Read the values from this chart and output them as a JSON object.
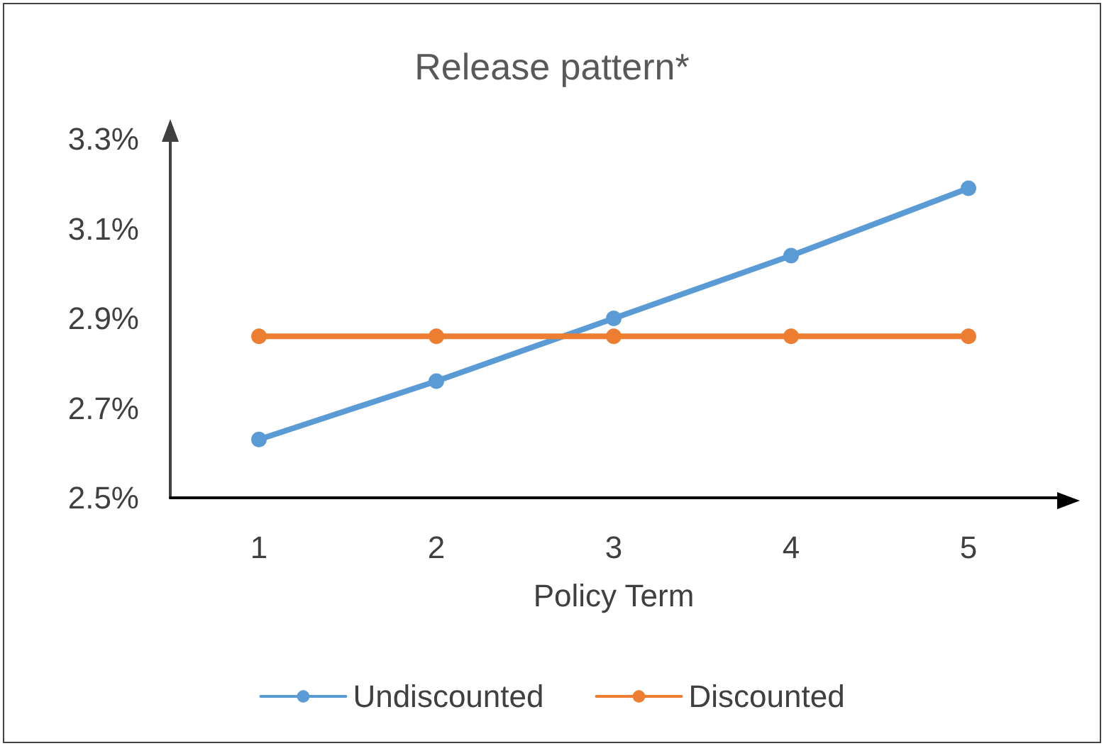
{
  "chart_data": {
    "type": "line",
    "title": "Release pattern*",
    "xlabel": "Policy Term",
    "categories": [
      "1",
      "2",
      "3",
      "4",
      "5"
    ],
    "series": [
      {
        "name": "Undiscounted",
        "color": "#5b9bd5",
        "values": [
          2.63,
          2.76,
          2.9,
          3.04,
          3.19
        ]
      },
      {
        "name": "Discounted",
        "color": "#ed7d31",
        "values": [
          2.86,
          2.86,
          2.86,
          2.86,
          2.86
        ]
      }
    ],
    "ylim": [
      2.5,
      3.3
    ],
    "yticks": [
      {
        "value": 2.5,
        "label": "2.5%"
      },
      {
        "value": 2.7,
        "label": "2.7%"
      },
      {
        "value": 2.9,
        "label": "2.9%"
      },
      {
        "value": 3.1,
        "label": "3.1%"
      },
      {
        "value": 3.3,
        "label": "3.3%"
      }
    ],
    "grid": false,
    "legend": "bottom",
    "marker": "circle",
    "line_style": "solid"
  }
}
